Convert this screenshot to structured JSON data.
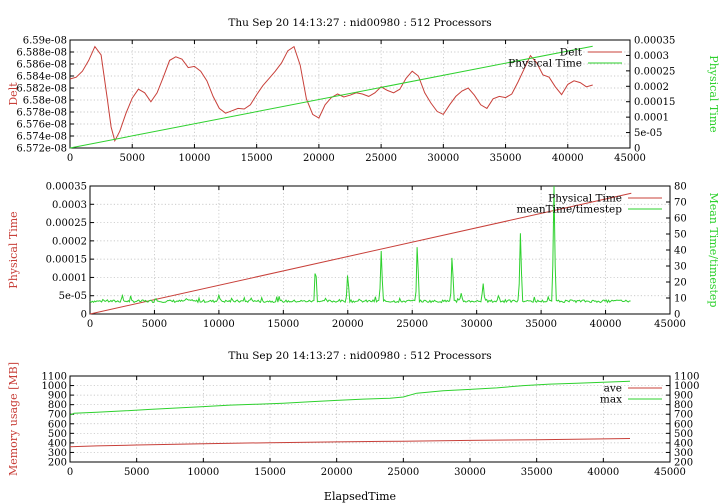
{
  "colors": {
    "red": "#c8403a",
    "green": "#2ed12e",
    "axis": "#000000",
    "grid": "#b9b9b9"
  },
  "chart_data": [
    {
      "type": "line",
      "title": "Thu Sep 20 14:13:27 : nid00980 : 512 Processors",
      "ylabel": "Delt",
      "y2label": "Physical Time",
      "xlim": [
        0,
        45000
      ],
      "ylim": [
        6.572e-08,
        6.59e-08
      ],
      "y2lim": [
        0,
        0.00035
      ],
      "xticks": [
        "0",
        "5000",
        "10000",
        "15000",
        "20000",
        "25000",
        "30000",
        "35000",
        "40000",
        "45000"
      ],
      "yticks": [
        "6.572e-08",
        "6.574e-08",
        "6.576e-08",
        "6.578e-08",
        "6.58e-08",
        "6.582e-08",
        "6.584e-08",
        "6.586e-08",
        "6.588e-08",
        "6.59e-08"
      ],
      "y2ticks": [
        "0",
        "5e-05",
        "0.0001",
        "0.00015",
        "0.0002",
        "0.00025",
        "0.0003",
        "0.00035"
      ],
      "grid": true,
      "legend_position": "top-right",
      "series": [
        {
          "name": "Delt",
          "color": "red",
          "axis": "y",
          "x": [
            0,
            500,
            1000,
            1500,
            2000,
            2500,
            3000,
            3300,
            3600,
            4000,
            4500,
            5000,
            5500,
            6000,
            6500,
            7000,
            7500,
            8000,
            8500,
            9000,
            9500,
            10000,
            10500,
            11000,
            11500,
            12000,
            12500,
            13000,
            13500,
            14000,
            14500,
            15000,
            15500,
            16000,
            16500,
            17000,
            17500,
            18000,
            18500,
            19000,
            19500,
            20000,
            20500,
            21000,
            21500,
            22000,
            22500,
            23000,
            23500,
            24000,
            24500,
            25000,
            25500,
            26000,
            26500,
            27000,
            27500,
            28000,
            28500,
            29000,
            29500,
            30000,
            30500,
            31000,
            31500,
            32000,
            32500,
            33000,
            33500,
            34000,
            34500,
            35000,
            35500,
            36000,
            36500,
            37000,
            37500,
            38000,
            38500,
            39000,
            39500,
            40000,
            40500,
            41000,
            41500,
            42000
          ],
          "y": [
            6.5835e-08,
            6.5838e-08,
            6.5848e-08,
            6.5866e-08,
            6.5889e-08,
            6.5875e-08,
            6.5802e-08,
            6.5755e-08,
            6.5732e-08,
            6.5748e-08,
            6.5778e-08,
            6.5803e-08,
            6.5818e-08,
            6.5812e-08,
            6.5797e-08,
            6.5812e-08,
            6.5838e-08,
            6.5866e-08,
            6.5872e-08,
            6.5868e-08,
            6.5854e-08,
            6.5856e-08,
            6.5848e-08,
            6.5832e-08,
            6.5806e-08,
            6.5786e-08,
            6.5778e-08,
            6.5782e-08,
            6.5786e-08,
            6.5785e-08,
            6.5792e-08,
            6.5809e-08,
            6.5824e-08,
            6.5836e-08,
            6.5848e-08,
            6.5862e-08,
            6.5882e-08,
            6.5889e-08,
            6.5858e-08,
            6.5802e-08,
            6.5776e-08,
            6.577e-08,
            6.5792e-08,
            6.5804e-08,
            6.581e-08,
            6.5805e-08,
            6.5808e-08,
            6.5812e-08,
            6.581e-08,
            6.5806e-08,
            6.5812e-08,
            6.5822e-08,
            6.5816e-08,
            6.5812e-08,
            6.5818e-08,
            6.5836e-08,
            6.5848e-08,
            6.584e-08,
            6.5812e-08,
            6.5795e-08,
            6.5781e-08,
            6.5776e-08,
            6.5792e-08,
            6.5806e-08,
            6.5815e-08,
            6.582e-08,
            6.5808e-08,
            6.5792e-08,
            6.5786e-08,
            6.5802e-08,
            6.5806e-08,
            6.5804e-08,
            6.581e-08,
            6.583e-08,
            6.5852e-08,
            6.5874e-08,
            6.5862e-08,
            6.5842e-08,
            6.5838e-08,
            6.5822e-08,
            6.5809e-08,
            6.5826e-08,
            6.5832e-08,
            6.5829e-08,
            6.5822e-08,
            6.5825e-08
          ]
        },
        {
          "name": "Physical Time",
          "color": "green",
          "axis": "y2",
          "x": [
            0,
            42000
          ],
          "y": [
            0,
            0.00033
          ]
        }
      ]
    },
    {
      "type": "line",
      "title": "",
      "ylabel": "Physical Time",
      "y2label": "Mean Time/timestep",
      "xlim": [
        0,
        45000
      ],
      "ylim": [
        0,
        0.00035
      ],
      "y2lim": [
        0,
        80
      ],
      "xticks": [
        "0",
        "5000",
        "10000",
        "15000",
        "20000",
        "25000",
        "30000",
        "35000",
        "40000",
        "45000"
      ],
      "yticks": [
        "0",
        "5e-05",
        "0.0001",
        "0.00015",
        "0.0002",
        "0.00025",
        "0.0003",
        "0.00035"
      ],
      "y2ticks": [
        "0",
        "10",
        "20",
        "30",
        "40",
        "50",
        "60",
        "70",
        "80"
      ],
      "grid": true,
      "legend_position": "top-right",
      "series": [
        {
          "name": "Physical Time",
          "color": "red",
          "axis": "y",
          "x": [
            0,
            42000
          ],
          "y": [
            0,
            0.00033
          ]
        },
        {
          "name": "meanTime/timestep",
          "color": "green",
          "axis": "y2",
          "baseline": 8,
          "peaks": [
            {
              "x": 2500,
              "y": 11
            },
            {
              "x": 5100,
              "y": 10
            },
            {
              "x": 7500,
              "y": 10
            },
            {
              "x": 10000,
              "y": 12
            },
            {
              "x": 12500,
              "y": 10
            },
            {
              "x": 17500,
              "y": 33
            },
            {
              "x": 20000,
              "y": 27
            },
            {
              "x": 22600,
              "y": 42
            },
            {
              "x": 25400,
              "y": 47
            },
            {
              "x": 28100,
              "y": 40
            },
            {
              "x": 28800,
              "y": 13
            },
            {
              "x": 30500,
              "y": 20
            },
            {
              "x": 31700,
              "y": 12
            },
            {
              "x": 33400,
              "y": 54
            },
            {
              "x": 36000,
              "y": 80
            },
            {
              "x": 38300,
              "y": 9
            },
            {
              "x": 40900,
              "y": 9
            }
          ],
          "x_end": 42000
        }
      ]
    },
    {
      "type": "line",
      "title": "Thu Sep 20 14:13:27 : nid00980 : 512 Processors",
      "xlabel": "ElapsedTime",
      "ylabel": "Memory usage [MB]",
      "xlim": [
        0,
        45000
      ],
      "ylim": [
        200,
        1100
      ],
      "y2lim": [
        200,
        1100
      ],
      "xticks": [
        "0",
        "5000",
        "10000",
        "15000",
        "20000",
        "25000",
        "30000",
        "35000",
        "40000",
        "45000"
      ],
      "yticks": [
        "200",
        "300",
        "400",
        "500",
        "600",
        "700",
        "800",
        "900",
        "1000",
        "1100"
      ],
      "y2ticks": [
        "200",
        "300",
        "400",
        "500",
        "600",
        "700",
        "800",
        "900",
        "1000",
        "1100"
      ],
      "grid": true,
      "legend_position": "top-right",
      "series": [
        {
          "name": "ave",
          "color": "red",
          "x": [
            0,
            2000,
            5000,
            10000,
            15000,
            20000,
            25000,
            30000,
            35000,
            40000,
            42000
          ],
          "y": [
            360,
            368,
            378,
            392,
            402,
            410,
            418,
            426,
            432,
            442,
            446
          ]
        },
        {
          "name": "max",
          "color": "green",
          "x": [
            0,
            300,
            2000,
            4000,
            6000,
            8000,
            10000,
            12000,
            14000,
            16000,
            18000,
            20000,
            22000,
            24000,
            25000,
            26000,
            28000,
            30000,
            32000,
            34000,
            36000,
            38000,
            40000,
            42000
          ],
          "y": [
            690,
            710,
            720,
            735,
            750,
            765,
            780,
            795,
            805,
            815,
            830,
            845,
            858,
            868,
            880,
            920,
            945,
            960,
            975,
            1000,
            1015,
            1025,
            1035,
            1045
          ]
        }
      ]
    }
  ]
}
